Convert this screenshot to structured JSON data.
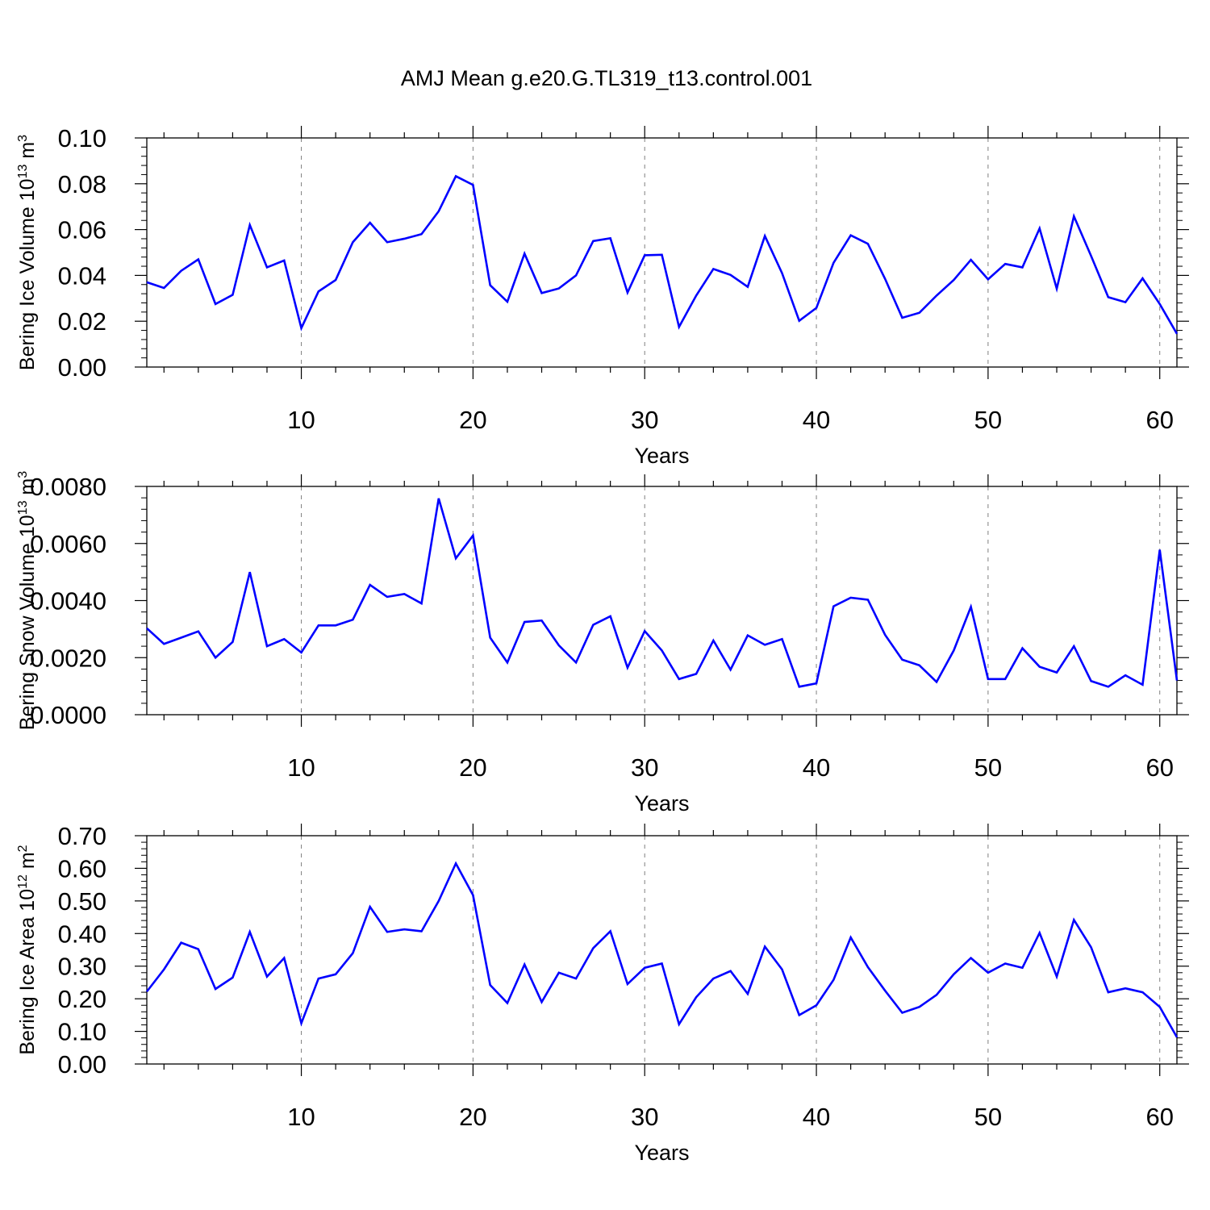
{
  "title": "AMJ Mean g.e20.G.TL319_t13.control.001",
  "colors": {
    "line": "#0000ff",
    "axis": "#000000",
    "grid": "#808080",
    "background": "#ffffff"
  },
  "chart_data": [
    {
      "type": "line",
      "ylabel": {
        "base": "Bering Ice Volume 10",
        "sup1": "13",
        "mid": " m",
        "sup2": "3"
      },
      "xlabel": "Years",
      "xlim": [
        1,
        61
      ],
      "ylim": [
        0,
        0.1
      ],
      "x_ticks": [
        "10",
        "20",
        "30",
        "40",
        "50",
        "60"
      ],
      "y_ticks": [
        "0.00",
        "0.02",
        "0.04",
        "0.06",
        "0.08",
        "0.10"
      ],
      "vertical_grid": "dashed at major x ticks",
      "series": [
        {
          "name": "Bering Ice Volume",
          "values": [
            0.037,
            0.0345,
            0.042,
            0.047,
            0.0275,
            0.0315,
            0.062,
            0.0435,
            0.0465,
            0.017,
            0.033,
            0.038,
            0.0545,
            0.063,
            0.0545,
            0.056,
            0.058,
            0.068,
            0.0833,
            0.0795,
            0.0357,
            0.0285,
            0.0495,
            0.0323,
            0.0343,
            0.04,
            0.055,
            0.0562,
            0.0325,
            0.0488,
            0.049,
            0.0175,
            0.0312,
            0.0428,
            0.0402,
            0.035,
            0.0572,
            0.041,
            0.0202,
            0.0258,
            0.0455,
            0.0575,
            0.0538,
            0.0385,
            0.0215,
            0.0237,
            0.0312,
            0.038,
            0.0468,
            0.0383,
            0.045,
            0.0435,
            0.0605,
            0.0342,
            0.0658,
            0.0485,
            0.0305,
            0.0283,
            0.0387,
            0.0275,
            0.0145
          ]
        }
      ]
    },
    {
      "type": "line",
      "ylabel": {
        "base": "Bering Snow Volume 10",
        "sup1": "13",
        "mid": " m",
        "sup2": "3"
      },
      "xlabel": "Years",
      "xlim": [
        1,
        61
      ],
      "ylim": [
        0,
        0.008
      ],
      "x_ticks": [
        "10",
        "20",
        "30",
        "40",
        "50",
        "60"
      ],
      "y_ticks": [
        "0.0000",
        "0.0020",
        "0.0040",
        "0.0060",
        "0.0080"
      ],
      "vertical_grid": "dashed at major x ticks",
      "series": [
        {
          "name": "Bering Snow Volume",
          "values": [
            0.00303,
            0.00248,
            0.0027,
            0.00292,
            0.002,
            0.00255,
            0.005,
            0.0024,
            0.00265,
            0.00218,
            0.00313,
            0.00313,
            0.00333,
            0.00455,
            0.00413,
            0.00423,
            0.0039,
            0.00758,
            0.00548,
            0.00628,
            0.0027,
            0.00183,
            0.00325,
            0.0033,
            0.00243,
            0.00183,
            0.00315,
            0.00345,
            0.00165,
            0.00293,
            0.00225,
            0.00125,
            0.00143,
            0.0026,
            0.00158,
            0.00278,
            0.00245,
            0.00265,
            0.00098,
            0.0011,
            0.0038,
            0.0041,
            0.00403,
            0.0028,
            0.00193,
            0.00173,
            0.00115,
            0.00225,
            0.00378,
            0.00125,
            0.00125,
            0.00233,
            0.00168,
            0.00148,
            0.0024,
            0.00118,
            0.00098,
            0.00138,
            0.00105,
            0.00578,
            0.0012
          ]
        }
      ]
    },
    {
      "type": "line",
      "ylabel": {
        "base": "Bering Ice Area 10",
        "sup1": "12",
        "mid": " m",
        "sup2": "2"
      },
      "xlabel": "Years",
      "xlim": [
        1,
        61
      ],
      "ylim": [
        0,
        0.7
      ],
      "x_ticks": [
        "10",
        "20",
        "30",
        "40",
        "50",
        "60"
      ],
      "y_ticks": [
        "0.00",
        "0.10",
        "0.20",
        "0.30",
        "0.40",
        "0.50",
        "0.60",
        "0.70"
      ],
      "vertical_grid": "dashed at major x ticks",
      "series": [
        {
          "name": "Bering Ice Area",
          "values": [
            0.222,
            0.29,
            0.372,
            0.352,
            0.23,
            0.265,
            0.405,
            0.268,
            0.325,
            0.125,
            0.262,
            0.275,
            0.34,
            0.482,
            0.405,
            0.413,
            0.407,
            0.5,
            0.615,
            0.518,
            0.242,
            0.187,
            0.305,
            0.19,
            0.28,
            0.262,
            0.355,
            0.407,
            0.245,
            0.295,
            0.308,
            0.122,
            0.205,
            0.262,
            0.285,
            0.215,
            0.36,
            0.29,
            0.15,
            0.18,
            0.258,
            0.388,
            0.297,
            0.225,
            0.157,
            0.175,
            0.212,
            0.275,
            0.325,
            0.28,
            0.308,
            0.295,
            0.402,
            0.268,
            0.442,
            0.358,
            0.22,
            0.232,
            0.22,
            0.175,
            0.082
          ]
        }
      ]
    }
  ]
}
